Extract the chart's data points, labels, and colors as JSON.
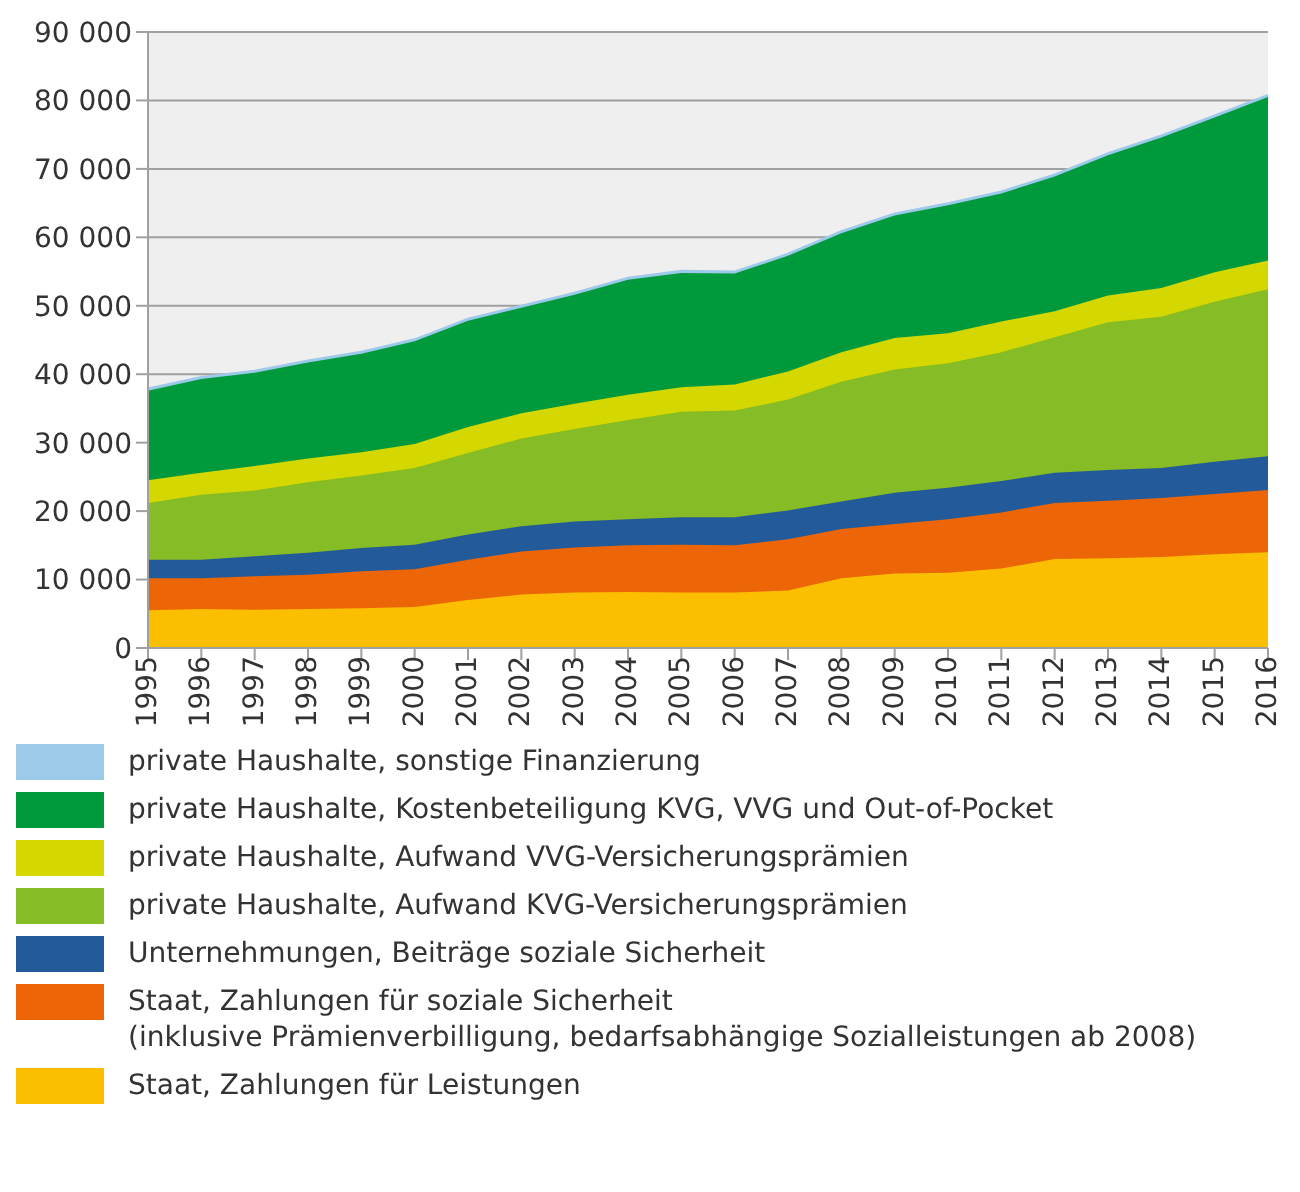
{
  "chart_data": {
    "type": "area",
    "stacked": true,
    "categories": [
      "1995",
      "1996",
      "1997",
      "1998",
      "1999",
      "2000",
      "2001",
      "2002",
      "2003",
      "2004",
      "2005",
      "2006",
      "2007",
      "2008",
      "2009",
      "2010",
      "2011",
      "2012",
      "2013",
      "2014",
      "2015",
      "2016"
    ],
    "series": [
      {
        "name": "Staat, Zahlungen für Leistungen",
        "color": "#fbbf00",
        "values": [
          5500,
          5700,
          5600,
          5700,
          5800,
          6000,
          7000,
          7800,
          8100,
          8200,
          8100,
          8100,
          8400,
          10200,
          10900,
          11000,
          11600,
          13000,
          13100,
          13300,
          13700,
          14000
        ]
      },
      {
        "name": "Staat, Zahlungen für soziale Sicherheit\n(inklusive Prämienverbilligung, bedarfsabhängige Sozialleistungen ab 2008)",
        "color": "#ec6608",
        "values": [
          4700,
          4500,
          4900,
          5000,
          5400,
          5500,
          5900,
          6300,
          6600,
          6800,
          7000,
          6900,
          7500,
          7200,
          7200,
          7800,
          8200,
          8200,
          8400,
          8600,
          8800,
          9100
        ]
      },
      {
        "name": "Unternehmungen, Beiträge soziale Sicherheit",
        "color": "#235a99",
        "values": [
          2700,
          2700,
          2900,
          3200,
          3400,
          3600,
          3700,
          3700,
          3800,
          3800,
          4000,
          4100,
          4200,
          4000,
          4600,
          4600,
          4600,
          4400,
          4500,
          4400,
          4700,
          4900
        ]
      },
      {
        "name": "private Haushalte, Aufwand KVG-Versicherungsprämien",
        "color": "#86bc25",
        "values": [
          8300,
          9500,
          9600,
          10300,
          10600,
          11200,
          11900,
          12800,
          13500,
          14500,
          15400,
          15600,
          16200,
          17500,
          18000,
          18200,
          18800,
          19800,
          21600,
          22100,
          23400,
          24400
        ]
      },
      {
        "name": "private Haushalte, Aufwand VVG-Versicherungsprämien",
        "color": "#d4d800",
        "values": [
          3300,
          3200,
          3600,
          3500,
          3400,
          3500,
          3800,
          3700,
          3700,
          3700,
          3600,
          3800,
          4100,
          4300,
          4600,
          4400,
          4500,
          3800,
          3900,
          4200,
          4300,
          4200
        ]
      },
      {
        "name": "private Haushalte, Kostenbeteiligung KVG, VVG und Out-of-Pocket",
        "color": "#009a3d",
        "values": [
          13100,
          13700,
          13600,
          14000,
          14400,
          15000,
          15500,
          15400,
          15900,
          16800,
          16700,
          16200,
          16900,
          17400,
          17900,
          18700,
          18700,
          19700,
          20500,
          22000,
          22600,
          23900
        ]
      },
      {
        "name": "private Haushalte, sonstige Finanzierung",
        "color": "#9dc9ea",
        "values": [
          300,
          300,
          300,
          300,
          300,
          300,
          300,
          300,
          300,
          300,
          300,
          300,
          300,
          300,
          300,
          300,
          300,
          300,
          300,
          300,
          300,
          300
        ]
      }
    ],
    "ylim": [
      0,
      90000
    ],
    "yticks": [
      0,
      {
        "value": 10000,
        "label": "10 000"
      },
      {
        "value": 20000,
        "label": "20 000"
      },
      {
        "value": 30000,
        "label": "30 000"
      },
      {
        "value": 40000,
        "label": "40 000"
      },
      {
        "value": 50000,
        "label": "50 000"
      },
      {
        "value": 60000,
        "label": "60 000"
      },
      {
        "value": 70000,
        "label": "70 000"
      },
      {
        "value": 80000,
        "label": "80 000"
      },
      {
        "value": 90000,
        "label": "90 000"
      }
    ],
    "grid": "y",
    "legend": "bottom"
  }
}
